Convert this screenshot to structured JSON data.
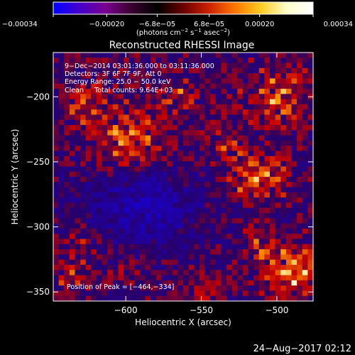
{
  "chart_data": {
    "type": "heatmap",
    "title": "Reconstructed RHESSI Image",
    "xlabel": "Heliocentric X (arcsec)",
    "ylabel": "Heliocentric Y (arcsec)",
    "xlim": [
      -648,
      -476
    ],
    "ylim": [
      -357,
      -166
    ],
    "x_ticks": [
      -600,
      -550,
      -500
    ],
    "y_ticks": [
      -200,
      -250,
      -300,
      -350
    ],
    "x_tick_labels": [
      "−600",
      "−550",
      "−500"
    ],
    "y_tick_labels": [
      "−200",
      "−250",
      "−300",
      "−350"
    ],
    "colorbar": {
      "range": [
        -0.00034,
        0.00034
      ],
      "ticks": [
        -0.00034,
        -0.0002,
        -6.8e-05,
        6.8e-05,
        0.0002,
        0.00034
      ],
      "tick_labels": [
        "−0.00034",
        "−0.00020",
        "−6.8e−05",
        "6.8e−05",
        "0.00020",
        "0.00034"
      ],
      "unit_text": "(photons cm",
      "unit_sup1": "−2",
      "unit_mid": " s",
      "unit_sup2": "−1",
      "unit_mid2": " asec",
      "unit_sup3": "−2",
      "unit_end": ")",
      "colors": [
        "#0000ff",
        "#4400cc",
        "#7a0090",
        "#3a0030",
        "#000000",
        "#6a0000",
        "#cc2200",
        "#ff7700",
        "#ffcc22",
        "#ffffcc",
        "#ffffff"
      ]
    },
    "annotations": [
      "9−Dec−2014 03:01:36.000 to 03:11:36.000",
      "Detectors: 3F 6F 7F 9F, Att 0",
      "Energy Range: 25.0 − 50.0 keV",
      "Clean     Total counts: 9.64E+03"
    ],
    "peak_label": "Position of Peak = [−464,−334]",
    "peak": [
      -464,
      -334
    ],
    "sources": [
      {
        "x": -598,
        "y": -232,
        "r": 22,
        "a": 0.85
      },
      {
        "x": -625,
        "y": -205,
        "r": 14,
        "a": 0.6
      },
      {
        "x": -513,
        "y": -262,
        "r": 17,
        "a": 0.95
      },
      {
        "x": -535,
        "y": -238,
        "r": 10,
        "a": 0.5
      },
      {
        "x": -500,
        "y": -200,
        "r": 20,
        "a": 0.7
      },
      {
        "x": -565,
        "y": -200,
        "r": 12,
        "a": 0.55
      },
      {
        "x": -627,
        "y": -305,
        "r": 14,
        "a": 0.5
      },
      {
        "x": -635,
        "y": -338,
        "r": 12,
        "a": 0.5
      },
      {
        "x": -600,
        "y": -335,
        "r": 10,
        "a": 0.35
      },
      {
        "x": -490,
        "y": -335,
        "r": 18,
        "a": 1.0
      },
      {
        "x": -510,
        "y": -315,
        "r": 12,
        "a": 0.55
      },
      {
        "x": -545,
        "y": -345,
        "r": 12,
        "a": 0.45
      }
    ],
    "grid": false
  },
  "footer": {
    "date": "24−Aug−2017 02:12"
  }
}
